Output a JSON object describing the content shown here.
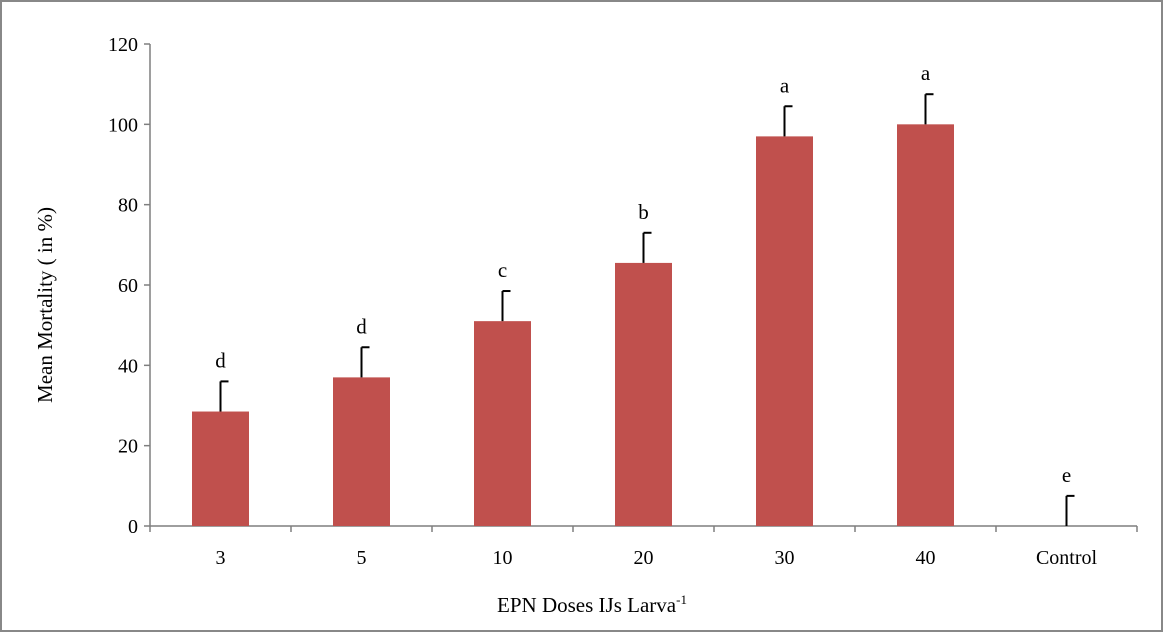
{
  "chart_data": {
    "type": "bar",
    "categories": [
      "3",
      "5",
      "10",
      "20",
      "30",
      "40",
      "Control"
    ],
    "values": [
      28.5,
      37,
      51,
      65.5,
      97,
      100,
      0
    ],
    "error_plus": [
      7.5,
      7.5,
      7.5,
      7.5,
      7.5,
      7.5,
      7.5
    ],
    "significance_labels": [
      "d",
      "d",
      "c",
      "b",
      "a",
      "a",
      "e"
    ],
    "xlabel": "EPN Doses IJs Larva",
    "xlabel_superscript": "-1",
    "ylabel": "Mean Mortality ( in %)",
    "ylim": [
      0,
      120
    ],
    "yticks": [
      0,
      20,
      40,
      60,
      80,
      100,
      120
    ],
    "grid": false,
    "legend": "none",
    "bar_color": "#c0504d"
  }
}
